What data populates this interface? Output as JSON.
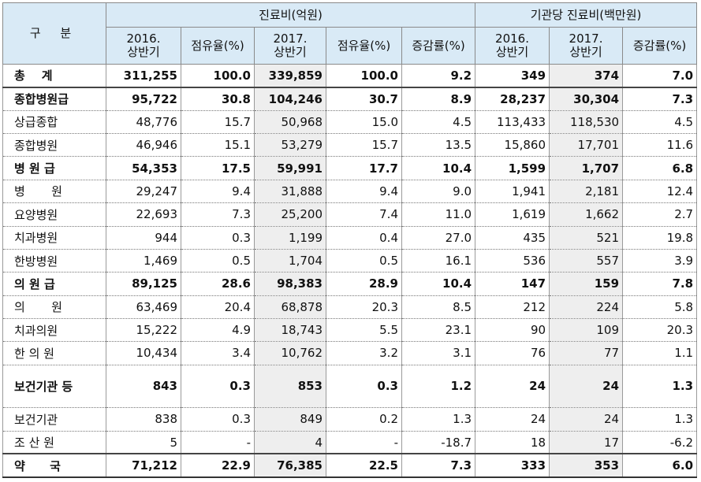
{
  "header": {
    "gubun": "구 분",
    "group1": "진료비(억원)",
    "group2": "기관당 진료비(백만원)",
    "cols": [
      {
        "l1": "2016.",
        "l2": "상반기"
      },
      {
        "l1": "점유율(%)",
        "l2": ""
      },
      {
        "l1": "2017.",
        "l2": "상반기"
      },
      {
        "l1": "점유율(%)",
        "l2": ""
      },
      {
        "l1": "증감률(%)",
        "l2": ""
      },
      {
        "l1": "2016.",
        "l2": "상반기"
      },
      {
        "l1": "2017.",
        "l2": "상반기"
      },
      {
        "l1": "증감률(%)",
        "l2": ""
      }
    ]
  },
  "rows": [
    {
      "label": "총    계",
      "type": "major",
      "sep": true,
      "v": [
        "311,255",
        "100.0",
        "339,859",
        "100.0",
        "9.2",
        "349",
        "374",
        "7.0"
      ]
    },
    {
      "label": "종합병원급",
      "type": "major",
      "v": [
        "95,722",
        "30.8",
        "104,246",
        "30.7",
        "8.9",
        "28,237",
        "30,304",
        "7.3"
      ]
    },
    {
      "label": "상급종합",
      "type": "minor",
      "v": [
        "48,776",
        "15.7",
        "50,968",
        "15.0",
        "4.5",
        "113,433",
        "118,530",
        "4.5"
      ]
    },
    {
      "label": "종합병원",
      "type": "minor",
      "v": [
        "46,946",
        "15.1",
        "53,279",
        "15.7",
        "13.5",
        "15,860",
        "17,701",
        "11.6"
      ]
    },
    {
      "label": "병 원 급",
      "type": "major",
      "v": [
        "54,353",
        "17.5",
        "59,991",
        "17.7",
        "10.4",
        "1,599",
        "1,707",
        "6.8"
      ]
    },
    {
      "label": "병       원",
      "type": "minor",
      "v": [
        "29,247",
        "9.4",
        "31,888",
        "9.4",
        "9.0",
        "1,941",
        "2,181",
        "12.4"
      ]
    },
    {
      "label": "요양병원",
      "type": "minor",
      "v": [
        "22,693",
        "7.3",
        "25,200",
        "7.4",
        "11.0",
        "1,619",
        "1,662",
        "2.7"
      ]
    },
    {
      "label": "치과병원",
      "type": "minor",
      "v": [
        "944",
        "0.3",
        "1,199",
        "0.4",
        "27.0",
        "435",
        "521",
        "19.8"
      ]
    },
    {
      "label": "한방병원",
      "type": "minor",
      "v": [
        "1,469",
        "0.5",
        "1,704",
        "0.5",
        "16.1",
        "536",
        "557",
        "3.9"
      ]
    },
    {
      "label": "의 원 급",
      "type": "major",
      "v": [
        "89,125",
        "28.6",
        "98,383",
        "28.9",
        "10.4",
        "147",
        "159",
        "7.8"
      ]
    },
    {
      "label": "의       원",
      "type": "minor",
      "v": [
        "63,469",
        "20.4",
        "68,878",
        "20.3",
        "8.5",
        "212",
        "224",
        "5.8"
      ]
    },
    {
      "label": "치과의원",
      "type": "minor",
      "v": [
        "15,222",
        "4.9",
        "18,743",
        "5.5",
        "23.1",
        "90",
        "109",
        "20.3"
      ]
    },
    {
      "label": "한 의 원",
      "type": "minor",
      "v": [
        "10,434",
        "3.4",
        "10,762",
        "3.2",
        "3.1",
        "76",
        "77",
        "1.1"
      ]
    },
    {
      "label": "보건기관 등",
      "type": "major",
      "tall": true,
      "v": [
        "843",
        "0.3",
        "853",
        "0.3",
        "1.2",
        "24",
        "24",
        "1.3"
      ]
    },
    {
      "label": "보건기관",
      "type": "minor",
      "v": [
        "838",
        "0.3",
        "849",
        "0.2",
        "1.3",
        "24",
        "24",
        "1.3"
      ]
    },
    {
      "label": "조 산 원",
      "type": "minor",
      "sep": true,
      "v": [
        "5",
        "-",
        "4",
        "-",
        "-18.7",
        "18",
        "17",
        "-6.2"
      ]
    },
    {
      "label": "약      국",
      "type": "major",
      "last": true,
      "v": [
        "71,212",
        "22.9",
        "76,385",
        "22.5",
        "7.3",
        "333",
        "353",
        "6.0"
      ]
    }
  ]
}
